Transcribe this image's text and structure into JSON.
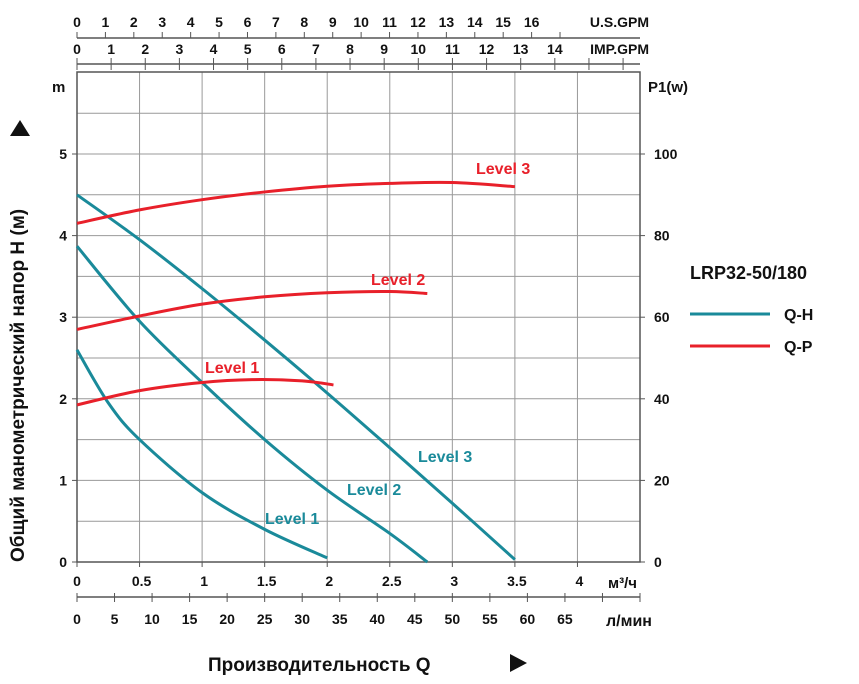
{
  "chart_data": {
    "type": "line",
    "title": "LRP32-50/180",
    "xlabel": "Производительность Q",
    "ylabel": "Общий манометрический напор H (м)",
    "y_unit": "m",
    "y2_unit": "P1(w)",
    "x_unit": "м³/ч",
    "x_unit_lmin": "л/мин",
    "x_unit_usgpm": "U.S.GPM",
    "x_unit_impgpm": "IMP.GPM",
    "xlim": [
      0,
      4.5
    ],
    "ylim": [
      0,
      6
    ],
    "y2lim": [
      0,
      120
    ],
    "grid": true,
    "x_ticks": [
      "0",
      "0.5",
      "1",
      "1.5",
      "2",
      "2.5",
      "3",
      "3.5",
      "4"
    ],
    "y_ticks": [
      "0",
      "1",
      "2",
      "3",
      "4",
      "5"
    ],
    "y2_ticks": [
      "0",
      "20",
      "40",
      "60",
      "80",
      "100"
    ],
    "lmin_ticks": [
      "0",
      "5",
      "10",
      "15",
      "20",
      "25",
      "30",
      "35",
      "40",
      "45",
      "50",
      "55",
      "60",
      "65"
    ],
    "usgpm_ticks": [
      "0",
      "1",
      "2",
      "3",
      "4",
      "5",
      "6",
      "7",
      "8",
      "9",
      "10",
      "11",
      "12",
      "13",
      "14",
      "15",
      "16"
    ],
    "impgpm_ticks": [
      "0",
      "1",
      "2",
      "3",
      "4",
      "5",
      "6",
      "7",
      "8",
      "9",
      "10",
      "11",
      "12",
      "13",
      "14"
    ],
    "legend": {
      "placement": "right",
      "entries": [
        {
          "name": "Q-H",
          "color": "#1a8a9a"
        },
        {
          "name": "Q-P",
          "color": "#e8202a"
        }
      ]
    },
    "qh_series": [
      {
        "name": "Level 1",
        "x": [
          0,
          0.25,
          0.5,
          1,
          1.5,
          2
        ],
        "y": [
          2.6,
          1.95,
          1.5,
          0.85,
          0.4,
          0.05
        ]
      },
      {
        "name": "Level 2",
        "x": [
          0,
          0.5,
          1,
          1.5,
          2,
          2.5,
          2.8
        ],
        "y": [
          3.87,
          2.95,
          2.2,
          1.5,
          0.88,
          0.35,
          0
        ]
      },
      {
        "name": "Level 3",
        "x": [
          0,
          0.5,
          1,
          1.5,
          2,
          2.5,
          3,
          3.5
        ],
        "y": [
          4.5,
          3.95,
          3.35,
          2.72,
          2.07,
          1.4,
          0.72,
          0.03
        ]
      }
    ],
    "qp_series": [
      {
        "name": "Level 1",
        "x": [
          0,
          0.5,
          1,
          1.4,
          1.8,
          2.05
        ],
        "y": [
          38.5,
          42,
          44,
          44.7,
          44.4,
          43.4
        ]
      },
      {
        "name": "Level 2",
        "x": [
          0,
          0.5,
          1,
          1.5,
          2,
          2.5,
          2.8
        ],
        "y": [
          57,
          60.3,
          63.2,
          65,
          66,
          66.3,
          65.8
        ]
      },
      {
        "name": "Level 3",
        "x": [
          0,
          0.5,
          1,
          1.5,
          2,
          2.5,
          3,
          3.5
        ],
        "y": [
          83,
          86.3,
          88.8,
          90.7,
          92.1,
          92.8,
          93,
          92
        ]
      }
    ]
  }
}
